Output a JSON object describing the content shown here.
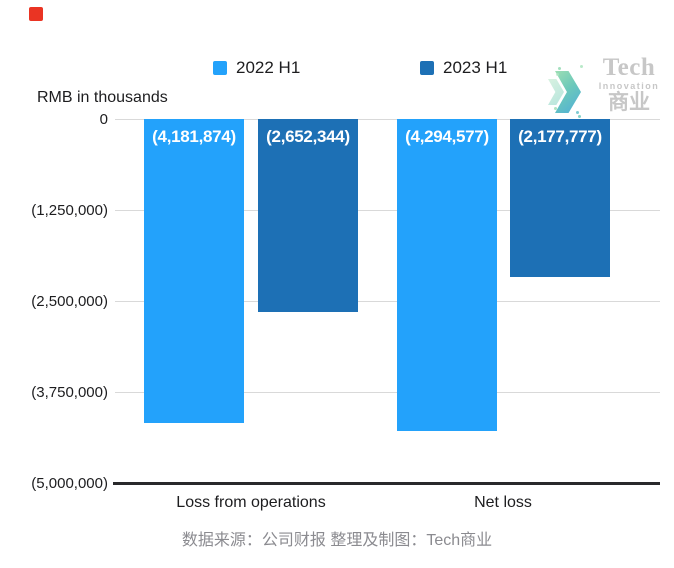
{
  "header": {
    "red_square_color": "#ea3423"
  },
  "legend": {
    "position": "top",
    "items": [
      {
        "label": "2022 H1",
        "color": "#23a2fb"
      },
      {
        "label": "2023 H1",
        "color": "#1d70b5"
      }
    ]
  },
  "chart_data": {
    "type": "bar",
    "title": "",
    "ylabel": "RMB in thousands",
    "xlabel": "",
    "ylim": [
      -5000000,
      0
    ],
    "grid": true,
    "legend_position": "top",
    "y_tick_labels": [
      "0",
      "(1,250,000)",
      "(2,500,000)",
      "(3,750,000)",
      "(5,000,000)"
    ],
    "categories": [
      "Loss from operations",
      "Net loss"
    ],
    "series": [
      {
        "name": "2022 H1",
        "color": "#23a2fb",
        "values": [
          -4181874,
          -4294577
        ]
      },
      {
        "name": "2023 H1",
        "color": "#1d70b5",
        "values": [
          -2652344,
          -2177777
        ]
      }
    ],
    "bars": [
      {
        "category": "Loss from operations",
        "series": "2022 H1",
        "value": -4181874,
        "label": "(4,181,874)"
      },
      {
        "category": "Loss from operations",
        "series": "2023 H1",
        "value": -2652344,
        "label": "(2,652,344)"
      },
      {
        "category": "Net loss",
        "series": "2022 H1",
        "value": -4294577,
        "label": "(4,294,577)"
      },
      {
        "category": "Net loss",
        "series": "2023 H1",
        "value": -2177777,
        "label": "(2,177,777)"
      }
    ]
  },
  "watermark": {
    "brand_top": "Tech",
    "brand_mid": "Innovation",
    "brand_bottom": "商业",
    "arrow_colors": [
      "#8bd8a6",
      "#2f9fd2"
    ],
    "text_color": "#c7c7c7"
  },
  "footer": {
    "text": "数据来源：公司财报 整理及制图：Tech商业"
  }
}
